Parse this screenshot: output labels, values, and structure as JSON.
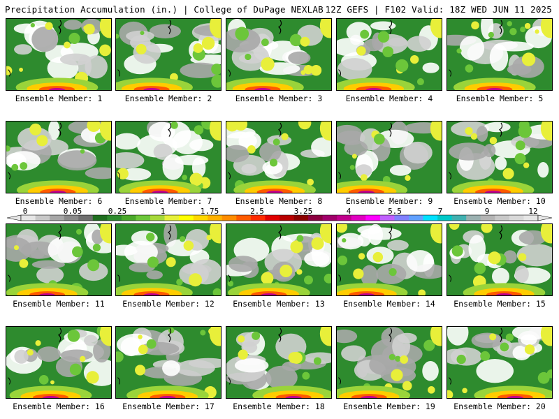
{
  "header": {
    "left": "Precipitation Accumulation (in.) | College of DuPage NEXLAB",
    "right": "12Z GEFS | F102 Valid: 18Z WED JUN 11 2025"
  },
  "colorbar": {
    "labels": [
      "0",
      "0.05",
      "0.25",
      "1",
      "1.75",
      "2.5",
      "3.25",
      "4",
      "5.5",
      "7",
      "9",
      "12"
    ],
    "colors": [
      "#e6e6e6",
      "#c8c8c8",
      "#a6a6a6",
      "#8a8a8a",
      "#6e6e6e",
      "#1f6e1f",
      "#2e8b2e",
      "#4aa82a",
      "#6cc63a",
      "#a6d83a",
      "#e6f03a",
      "#ffff00",
      "#ffd700",
      "#ffb000",
      "#ff8c00",
      "#ff5a00",
      "#ff2a00",
      "#e00000",
      "#b80000",
      "#8b0000",
      "#8b0040",
      "#a0006a",
      "#c0008c",
      "#e000c0",
      "#ff00ff",
      "#c060ff",
      "#8080ff",
      "#60a0ff",
      "#00e0ff",
      "#00c8c8",
      "#40b0b0",
      "#9ab0b0",
      "#b4b4b4",
      "#c8c8c8",
      "#d8d8d8",
      "#e6e6e6"
    ]
  },
  "panels": [
    {
      "label": "Ensemble Member: 1"
    },
    {
      "label": "Ensemble Member: 2"
    },
    {
      "label": "Ensemble Member: 3"
    },
    {
      "label": "Ensemble Member: 4"
    },
    {
      "label": "Ensemble Member: 5"
    },
    {
      "label": "Ensemble Member: 6"
    },
    {
      "label": "Ensemble Member: 7"
    },
    {
      "label": "Ensemble Member: 8"
    },
    {
      "label": "Ensemble Member: 9"
    },
    {
      "label": "Ensemble Member: 10"
    },
    {
      "label": "Ensemble Member: 11"
    },
    {
      "label": "Ensemble Member: 12"
    },
    {
      "label": "Ensemble Member: 13"
    },
    {
      "label": "Ensemble Member: 14"
    },
    {
      "label": "Ensemble Member: 15"
    },
    {
      "label": "Ensemble Member: 16"
    },
    {
      "label": "Ensemble Member: 17"
    },
    {
      "label": "Ensemble Member: 18"
    },
    {
      "label": "Ensemble Member: 19"
    },
    {
      "label": "Ensemble Member: 20"
    }
  ]
}
